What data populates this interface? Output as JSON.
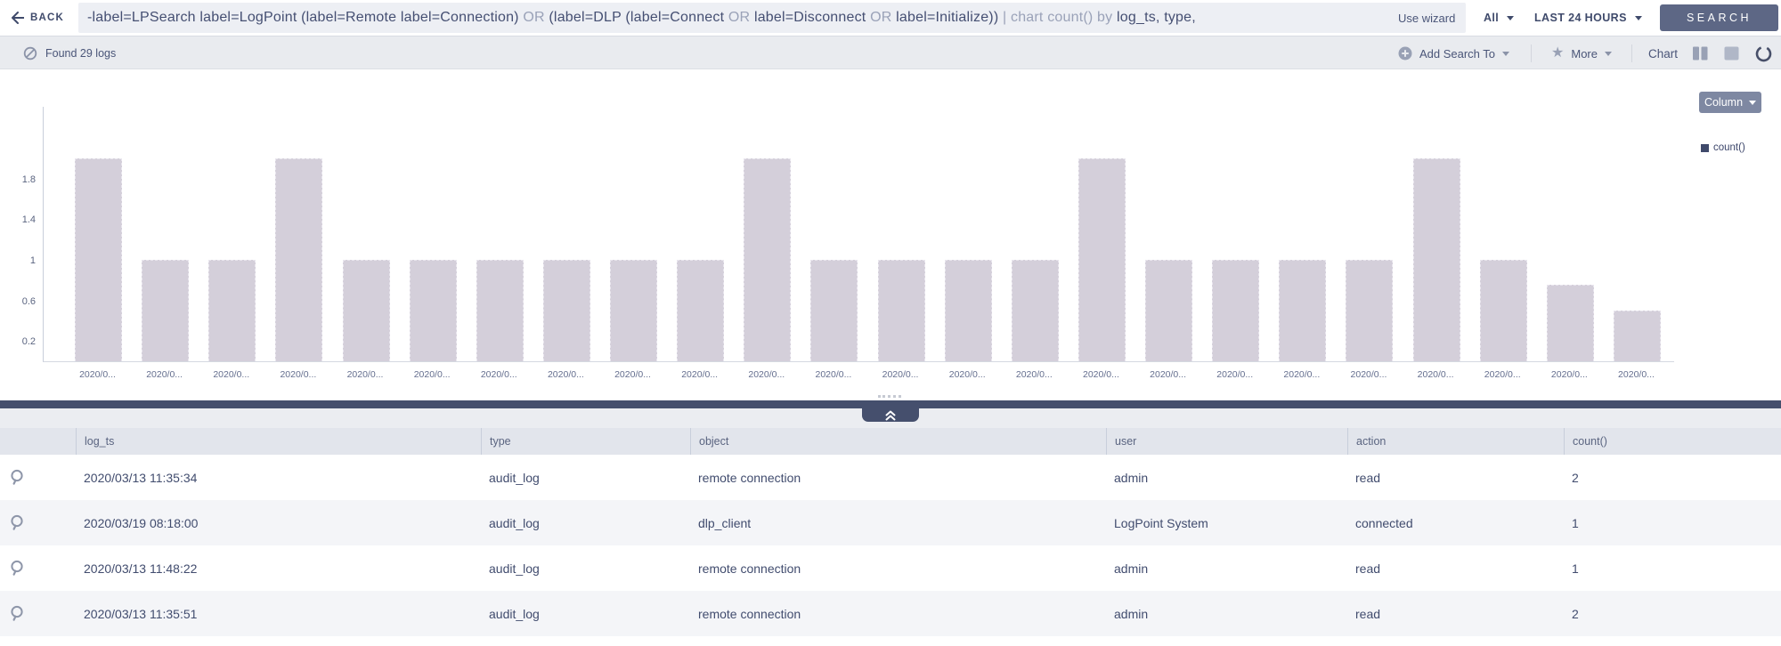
{
  "topbar": {
    "back_label": "BACK",
    "query_segments": [
      {
        "text": "-label=LPSearch label=LogPoint (label=Remote label=Connection) ",
        "tone": "dark"
      },
      {
        "text": "OR ",
        "tone": "muted"
      },
      {
        "text": "(label=DLP (label=Connect ",
        "tone": "dark"
      },
      {
        "text": "OR ",
        "tone": "muted"
      },
      {
        "text": "label=Disconnect ",
        "tone": "dark"
      },
      {
        "text": "OR ",
        "tone": "muted"
      },
      {
        "text": "label=Initialize)) ",
        "tone": "dark"
      },
      {
        "text": "| chart count() by ",
        "tone": "muted"
      },
      {
        "text": "log_ts, type,",
        "tone": "dark"
      }
    ],
    "use_wizard_label": "Use wizard",
    "repo_selector": "All",
    "time_range": "LAST 24 HOURS",
    "search_button": "SEARCH"
  },
  "statusbar": {
    "found_text": "Found 29 logs",
    "add_search_to_label": "Add Search To",
    "more_label": "More",
    "chart_label": "Chart"
  },
  "chart_panel": {
    "chart_type_button": "Column",
    "legend_label": "count()"
  },
  "chart_data": {
    "type": "bar",
    "title": "",
    "xlabel": "",
    "ylabel": "",
    "categories": [
      "2020/0...",
      "2020/0...",
      "2020/0...",
      "2020/0...",
      "2020/0...",
      "2020/0...",
      "2020/0...",
      "2020/0...",
      "2020/0...",
      "2020/0...",
      "2020/0...",
      "2020/0...",
      "2020/0...",
      "2020/0...",
      "2020/0...",
      "2020/0...",
      "2020/0...",
      "2020/0...",
      "2020/0...",
      "2020/0...",
      "2020/0...",
      "2020/0...",
      "2020/0...",
      "2020/0..."
    ],
    "series": [
      {
        "name": "count()",
        "values": [
          2,
          1,
          1,
          2,
          1,
          1,
          1,
          1,
          1,
          1,
          2,
          1,
          1,
          1,
          1,
          2,
          1,
          1,
          1,
          1,
          2,
          1,
          0.75,
          0.5
        ]
      }
    ],
    "yticks": [
      "1.8",
      "1.4",
      "1",
      "0.6",
      "0.2"
    ],
    "ytick_values": [
      1.8,
      1.4,
      1,
      0.6,
      0.2
    ],
    "ylim": [
      0,
      2.5
    ],
    "grid": false,
    "legend_position": "top-right",
    "bar_color": "#d4cfda",
    "legend_color": "#3f4a6b"
  },
  "table": {
    "columns": [
      {
        "key": "log_ts",
        "label": "log_ts"
      },
      {
        "key": "type",
        "label": "type"
      },
      {
        "key": "object",
        "label": "object"
      },
      {
        "key": "user",
        "label": "user"
      },
      {
        "key": "action",
        "label": "action"
      },
      {
        "key": "count",
        "label": "count()"
      }
    ],
    "rows": [
      {
        "log_ts": "2020/03/13 11:35:34",
        "type": "audit_log",
        "object": "remote connection",
        "user": "admin",
        "action": "read",
        "count": "2"
      },
      {
        "log_ts": "2020/03/19 08:18:00",
        "type": "audit_log",
        "object": "dlp_client",
        "user": "LogPoint System",
        "action": "connected",
        "count": "1"
      },
      {
        "log_ts": "2020/03/13 11:48:22",
        "type": "audit_log",
        "object": "remote connection",
        "user": "admin",
        "action": "read",
        "count": "1"
      },
      {
        "log_ts": "2020/03/13 11:35:51",
        "type": "audit_log",
        "object": "remote connection",
        "user": "admin",
        "action": "read",
        "count": "2"
      }
    ]
  },
  "colors": {
    "accent_dark": "#454f6d",
    "bar_fill": "#d4cfda",
    "statusbar_bg": "#e9ebef",
    "header_bg": "#e2e5ec",
    "row_alt_bg": "#f4f5f8",
    "query_dark": "#454f72",
    "query_muted": "#9aa2b8"
  }
}
